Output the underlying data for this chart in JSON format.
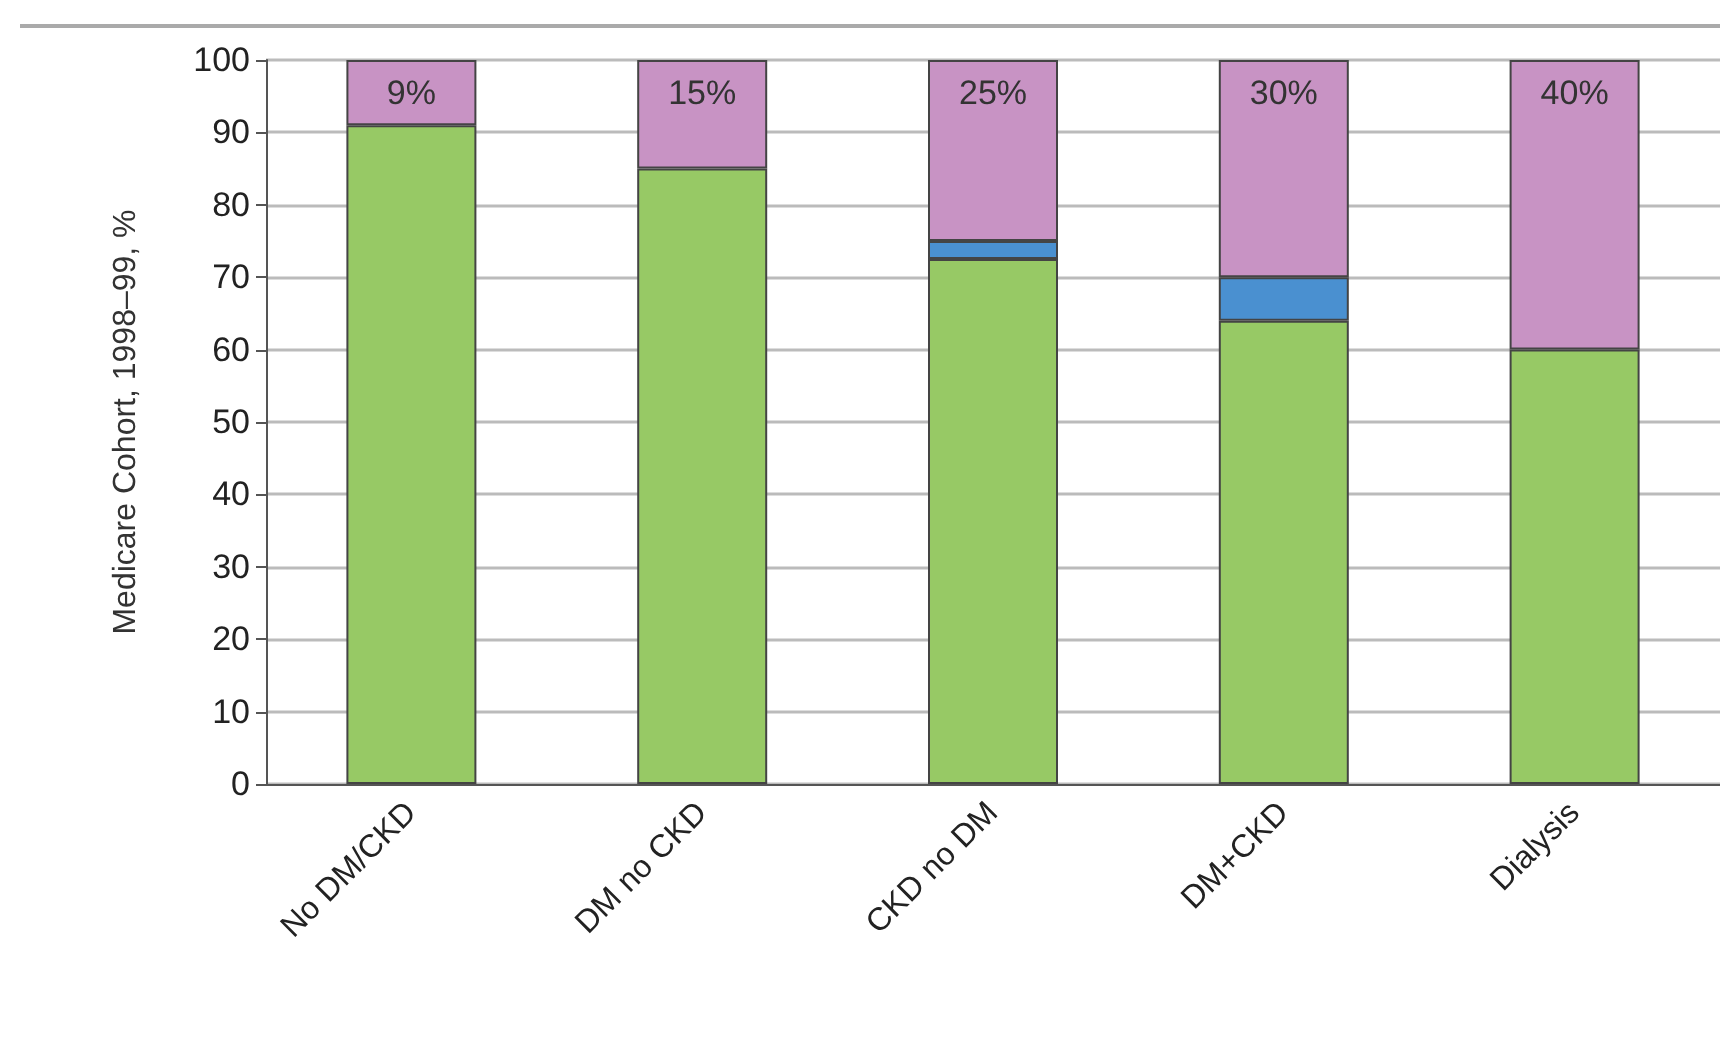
{
  "chart_data": {
    "type": "bar",
    "ylabel": "Medicare Cohort, 1998–99, %",
    "categories": [
      "No DM/CKD",
      "DM no CKD",
      "CKD no DM",
      "DM+CKD",
      "Dialysis"
    ],
    "stacked": true,
    "series": [
      {
        "color": "#97c965",
        "values": [
          91,
          85,
          72.5,
          64,
          60
        ]
      },
      {
        "color": "#4a90d0",
        "values": [
          null,
          null,
          2.5,
          6,
          null
        ]
      },
      {
        "color": "#c893c4",
        "values": [
          9,
          15,
          25,
          30,
          40
        ],
        "value_labels": [
          "9%",
          "15%",
          "25%",
          "30%",
          "40%"
        ]
      }
    ],
    "ylim": [
      0,
      100
    ],
    "yticks": [
      0,
      10,
      20,
      30,
      40,
      50,
      60,
      70,
      80,
      90,
      100
    ],
    "grid": "y"
  }
}
